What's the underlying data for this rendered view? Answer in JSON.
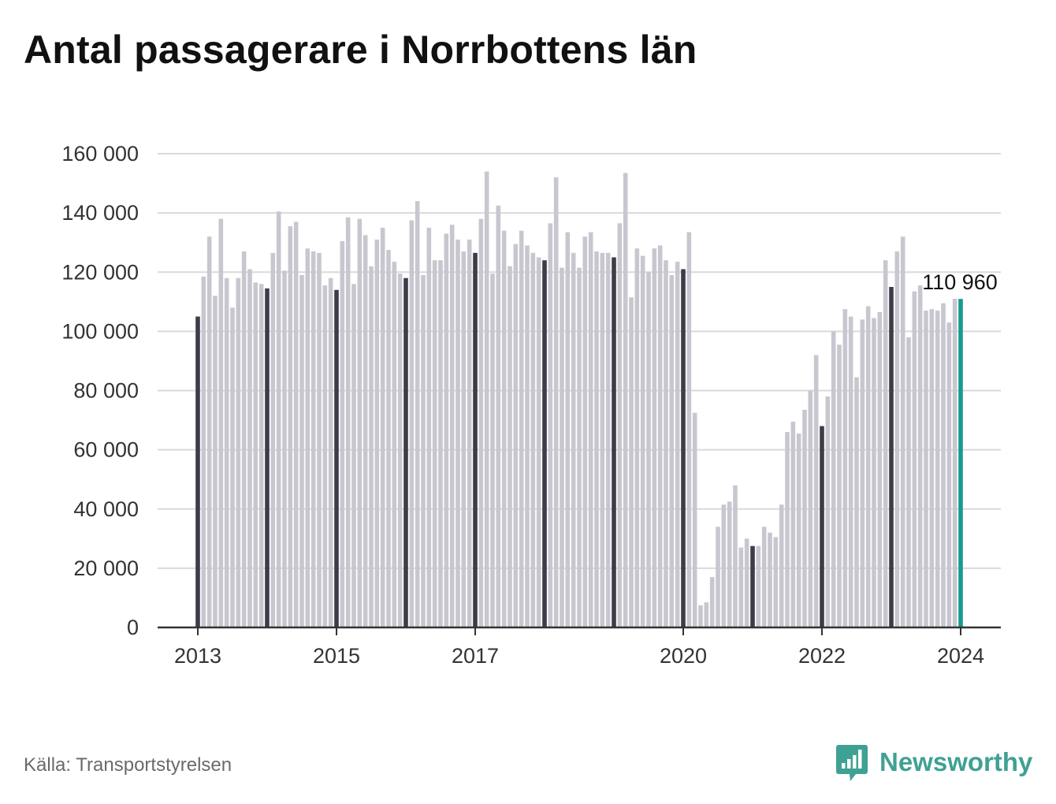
{
  "header": {
    "title": "Antal passagerare i Norrbottens län"
  },
  "footer": {
    "source": "Källa: Transportstyrelsen",
    "brand": "Newsworthy"
  },
  "icons": {
    "brand_logo": "bar-chart-speech-bubble-icon"
  },
  "colors": {
    "bar_default": "#c8c7d0",
    "bar_january": "#3d3c4a",
    "bar_latest": "#169b8f",
    "grid": "#dadada",
    "axis": "#333333",
    "brand": "#3fa193"
  },
  "chart_data": {
    "type": "bar",
    "title": "Antal passagerare i Norrbottens län",
    "xlabel": "",
    "ylabel": "",
    "ylim": [
      0,
      160000
    ],
    "yticks": [
      0,
      20000,
      40000,
      60000,
      80000,
      100000,
      120000,
      140000,
      160000
    ],
    "ytick_labels": [
      "0",
      "20 000",
      "40 000",
      "60 000",
      "80 000",
      "100 000",
      "120 000",
      "140 000",
      "160 000"
    ],
    "xtick_labels": [
      "2013",
      "2015",
      "2017",
      "2020",
      "2022",
      "2024"
    ],
    "grid": true,
    "start": "2013-01",
    "end": "2024-01",
    "highlight": "January of each year darker; latest month teal",
    "annotation": {
      "month": "2024-01",
      "text": "110 960"
    },
    "values": [
      105000,
      118500,
      132000,
      112000,
      138000,
      118000,
      108000,
      118000,
      127000,
      121000,
      116500,
      116000,
      114500,
      126500,
      140500,
      120500,
      135500,
      137000,
      119000,
      128000,
      127000,
      126500,
      115500,
      118000,
      114000,
      130500,
      138500,
      116000,
      138000,
      132500,
      122000,
      131000,
      135000,
      127500,
      123500,
      119500,
      118000,
      137500,
      144000,
      119000,
      135000,
      124000,
      124000,
      133000,
      136000,
      131000,
      127000,
      131000,
      126500,
      138000,
      154000,
      119500,
      142500,
      134000,
      122000,
      129500,
      134000,
      129000,
      126500,
      125000,
      124000,
      136500,
      152000,
      121500,
      133500,
      126500,
      121500,
      132000,
      133500,
      127000,
      126500,
      126500,
      125000,
      136500,
      153500,
      111500,
      128000,
      125500,
      120000,
      128000,
      129000,
      124000,
      119000,
      123500,
      121000,
      133500,
      72500,
      7500,
      8500,
      17000,
      34000,
      41500,
      42500,
      48000,
      27000,
      30000,
      27500,
      27500,
      34000,
      32000,
      30500,
      41500,
      66000,
      69500,
      65500,
      73500,
      80000,
      92000,
      68000,
      78000,
      100000,
      95500,
      107500,
      105000,
      84500,
      104000,
      108500,
      104500,
      106500,
      124000,
      115000,
      127000,
      132000,
      98000,
      113500,
      115500,
      107000,
      107500,
      107000,
      109500,
      103000,
      111000,
      110960
    ]
  }
}
